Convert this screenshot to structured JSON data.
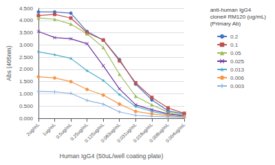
{
  "chart_data": {
    "type": "line",
    "xlabel": "Human IgG4 (50uL/well coating plate)",
    "ylabel": "Abs (405nm)",
    "legend_title": "anti-human IgG4\nclone# RM120 (ug/mL)\n(Primary Ab)",
    "legend": "right",
    "grid": true,
    "categories": [
      "2ug/mL",
      "1ug/mL",
      "0.5ug/mL",
      "0.25ug/mL",
      "0.125ug/mL",
      "0.063ug/mL",
      "0.031ug/mL",
      "0.016ug/mL",
      "0.008ug/mL",
      "0.004ug/mL"
    ],
    "series": [
      {
        "name": "0.2",
        "color": "#4472C4",
        "marker": "circle",
        "values": [
          4.35,
          4.35,
          4.3,
          3.55,
          3.2,
          2.4,
          1.4,
          0.75,
          0.3,
          0.18
        ]
      },
      {
        "name": "0.1",
        "color": "#C0504D",
        "marker": "square",
        "values": [
          4.2,
          4.25,
          4.1,
          3.5,
          3.2,
          2.35,
          1.45,
          0.85,
          0.42,
          0.2
        ]
      },
      {
        "name": "0.05",
        "color": "#9BBB59",
        "marker": "triangle",
        "values": [
          4.1,
          4.05,
          3.85,
          3.45,
          2.9,
          1.8,
          0.9,
          0.55,
          0.25,
          0.12
        ]
      },
      {
        "name": "0.025",
        "color": "#7030A0",
        "marker": "x",
        "values": [
          3.55,
          3.3,
          3.25,
          3.05,
          2.15,
          1.2,
          0.55,
          0.35,
          0.18,
          0.1
        ]
      },
      {
        "name": "0.013",
        "color": "#4BACC6",
        "marker": "star",
        "values": [
          2.72,
          2.6,
          2.45,
          1.95,
          1.55,
          0.97,
          0.48,
          0.28,
          0.14,
          0.08
        ]
      },
      {
        "name": "0.006",
        "color": "#F79646",
        "marker": "circle",
        "values": [
          1.7,
          1.65,
          1.5,
          1.18,
          0.95,
          0.58,
          0.28,
          0.18,
          0.1,
          0.06
        ]
      },
      {
        "name": "0.003",
        "color": "#8DB4E2",
        "marker": "plus",
        "values": [
          1.1,
          1.08,
          1.02,
          0.73,
          0.58,
          0.26,
          0.12,
          0.08,
          0.05,
          0.03
        ]
      }
    ],
    "ylim": [
      0.0,
      4.5
    ],
    "yticks": [
      {
        "value": 0.0,
        "label": "0.000"
      },
      {
        "value": 0.5,
        "label": "0.500"
      },
      {
        "value": 1.0,
        "label": "1.000"
      },
      {
        "value": 1.5,
        "label": "1.500"
      },
      {
        "value": 2.0,
        "label": "2.000"
      },
      {
        "value": 2.5,
        "label": "2.500"
      },
      {
        "value": 3.0,
        "label": "3.000"
      },
      {
        "value": 3.5,
        "label": "3.500"
      },
      {
        "value": 4.0,
        "label": "4.000"
      },
      {
        "value": 4.5,
        "label": "4.500"
      }
    ]
  }
}
